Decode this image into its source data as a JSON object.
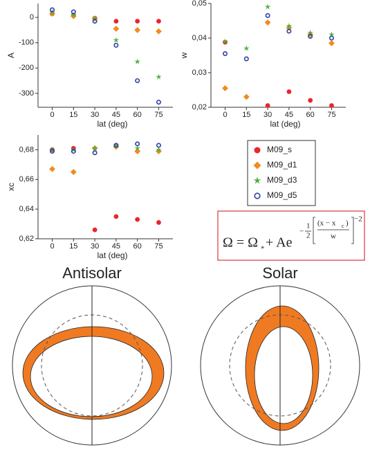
{
  "chart_data": [
    {
      "type": "scatter",
      "y_label": "A",
      "x_label": "lat (deg)",
      "x": [
        0,
        15,
        30,
        45,
        60,
        75
      ],
      "xlim": [
        -10,
        85
      ],
      "xticks": [
        0,
        15,
        30,
        45,
        60,
        75
      ],
      "ylim": [
        -355,
        55
      ],
      "yticks": [
        0,
        -100,
        -200,
        -300
      ],
      "series": [
        {
          "values": [
            14,
            8,
            -3,
            -15,
            -15,
            -15
          ]
        },
        {
          "values": [
            15,
            5,
            -5,
            -45,
            -50,
            -55
          ]
        },
        {
          "values": [
            20,
            10,
            -5,
            -90,
            -175,
            -235
          ]
        },
        {
          "values": [
            30,
            22,
            -15,
            -110,
            -250,
            -335
          ]
        }
      ]
    },
    {
      "type": "scatter",
      "y_label": "w",
      "x_label": "lat (deg)",
      "x": [
        0,
        15,
        30,
        45,
        60,
        75
      ],
      "xlim": [
        -10,
        85
      ],
      "xticks": [
        0,
        15,
        30,
        45,
        60,
        75
      ],
      "ylim": [
        0.02,
        0.05
      ],
      "yticks": [
        {
          "value": 0.02,
          "label": "0,02"
        },
        {
          "value": 0.03,
          "label": "0,03"
        },
        {
          "value": 0.04,
          "label": "0,04"
        },
        {
          "value": 0.05,
          "label": "0,05"
        }
      ],
      "series": [
        {
          "values": [
            0.0388,
            null,
            0.0205,
            0.0245,
            0.022,
            0.0205
          ]
        },
        {
          "values": [
            0.0255,
            0.023,
            0.0445,
            0.043,
            0.041,
            0.0385
          ]
        },
        {
          "values": [
            0.039,
            0.037,
            0.049,
            0.0435,
            0.0415,
            0.041
          ]
        },
        {
          "values": [
            0.0355,
            0.034,
            0.0465,
            0.042,
            0.0405,
            0.04
          ]
        }
      ]
    },
    {
      "type": "scatter",
      "y_label": "xc",
      "x_label": "lat (deg)",
      "x": [
        0,
        15,
        30,
        45,
        60,
        75
      ],
      "xlim": [
        -10,
        85
      ],
      "xticks": [
        0,
        15,
        30,
        45,
        60,
        75
      ],
      "ylim": [
        0.62,
        0.69
      ],
      "yticks": [
        {
          "value": 0.62,
          "label": "0,62"
        },
        {
          "value": 0.64,
          "label": "0,64"
        },
        {
          "value": 0.66,
          "label": "0,66"
        },
        {
          "value": 0.68,
          "label": "0,68"
        }
      ],
      "series": [
        {
          "values": [
            0.68,
            0.681,
            0.626,
            0.635,
            0.633,
            0.631
          ]
        },
        {
          "values": [
            0.667,
            0.665,
            0.681,
            0.682,
            0.679,
            0.679
          ]
        },
        {
          "values": [
            0.68,
            0.68,
            0.681,
            0.683,
            0.681,
            0.68
          ]
        },
        {
          "values": [
            0.679,
            0.679,
            0.678,
            0.683,
            0.684,
            0.683
          ]
        }
      ]
    }
  ],
  "legend": [
    {
      "name": "M09_s",
      "color": "#e8262b",
      "marker": "circle"
    },
    {
      "name": "M09_d1",
      "color": "#f08c1e",
      "marker": "diamond"
    },
    {
      "name": "M09_d3",
      "color": "#4caf3c",
      "marker": "star"
    },
    {
      "name": "M09_d5",
      "color": "#2b3fa8",
      "marker": "open-circle"
    }
  ],
  "formula": {
    "lhs": "Ω = Ω",
    "sub": "*",
    "rest": "+ Ae",
    "minus": "−",
    "half_num": "1",
    "half_den": "2",
    "num": "(x − x",
    "num_sub": "c",
    "num_close": ")",
    "den": "w",
    "power": "−2"
  },
  "diagrams": [
    {
      "title": "Antisolar"
    },
    {
      "title": "Solar"
    }
  ]
}
